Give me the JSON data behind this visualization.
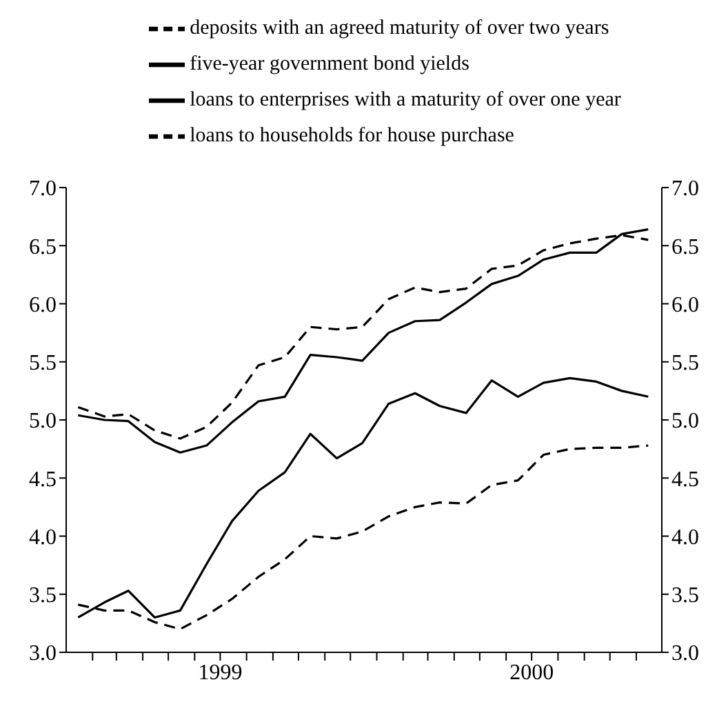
{
  "chart_data": {
    "type": "line",
    "x": [
      "1999-01-15",
      "1999-02-15",
      "1999-03-15",
      "1999-04-15",
      "1999-05-15",
      "1999-06-15",
      "1999-07-15",
      "1999-08-15",
      "1999-09-15",
      "1999-10-15",
      "1999-11-15",
      "1999-12-15",
      "2000-01-15",
      "2000-02-15",
      "2000-03-15",
      "2000-04-15",
      "2000-05-15",
      "2000-06-15",
      "2000-07-15",
      "2000-08-15",
      "2000-09-15",
      "2000-10-15",
      "2000-11-15"
    ],
    "series": [
      {
        "name": "five-year government bond yields",
        "color": "#000000",
        "line_style": "solid",
        "values": [
          3.3,
          3.43,
          3.53,
          3.3,
          3.36,
          3.76,
          4.13,
          4.39,
          4.55,
          4.88,
          4.67,
          4.8,
          5.14,
          5.23,
          5.12,
          5.06,
          5.34,
          5.2,
          5.32,
          5.36,
          5.33,
          5.25,
          5.2
        ]
      },
      {
        "name": "loans to households for house purchase",
        "color": "#000000",
        "line_style": "dashed",
        "values": [
          5.11,
          5.03,
          5.05,
          4.91,
          4.84,
          4.94,
          5.15,
          5.47,
          5.54,
          5.8,
          5.78,
          5.8,
          6.04,
          6.14,
          6.1,
          6.13,
          6.3,
          6.33,
          6.46,
          6.52,
          6.56,
          6.59,
          6.55
        ]
      },
      {
        "name": "deposits with an agreed maturity of over two years",
        "color": "#000000",
        "line_style": "dashed",
        "values": [
          3.41,
          3.36,
          3.36,
          3.26,
          3.2,
          3.32,
          3.46,
          3.65,
          3.8,
          4.0,
          3.98,
          4.04,
          4.17,
          4.25,
          4.29,
          4.28,
          4.44,
          4.48,
          4.7,
          4.75,
          4.76,
          4.76,
          4.78
        ]
      },
      {
        "name": "loans to enterprises with a maturity of over one year",
        "color": "#000000",
        "line_style": "solid",
        "values": [
          5.04,
          5.0,
          4.99,
          4.81,
          4.72,
          4.78,
          4.98,
          5.16,
          5.2,
          5.56,
          5.54,
          5.51,
          5.75,
          5.85,
          5.86,
          6.01,
          6.17,
          6.24,
          6.38,
          6.44,
          6.44,
          6.6,
          6.64
        ]
      }
    ],
    "xlim": [
      "1999-01-01",
      "2000-12-01"
    ],
    "xticks": [
      {
        "value": "1999-02-01",
        "label": null
      },
      {
        "value": "1999-03-01",
        "label": null
      },
      {
        "value": "1999-04-01",
        "label": null
      },
      {
        "value": "1999-05-01",
        "label": null
      },
      {
        "value": "1999-06-01",
        "label": null
      },
      {
        "value": "1999-07-01",
        "label": "1999"
      },
      {
        "value": "1999-08-01",
        "label": null
      },
      {
        "value": "1999-09-01",
        "label": null
      },
      {
        "value": "1999-10-01",
        "label": null
      },
      {
        "value": "1999-11-01",
        "label": null
      },
      {
        "value": "1999-12-01",
        "label": null
      },
      {
        "value": "2000-01-01",
        "label": null
      },
      {
        "value": "2000-02-01",
        "label": null
      },
      {
        "value": "2000-03-01",
        "label": null
      },
      {
        "value": "2000-04-01",
        "label": null
      },
      {
        "value": "2000-05-01",
        "label": null
      },
      {
        "value": "2000-06-01",
        "label": null
      },
      {
        "value": "2000-07-01",
        "label": "2000"
      },
      {
        "value": "2000-08-01",
        "label": null
      },
      {
        "value": "2000-09-01",
        "label": null
      },
      {
        "value": "2000-10-01",
        "label": null
      },
      {
        "value": "2000-11-01",
        "label": null
      }
    ],
    "ylim": [
      3.0,
      7.0
    ],
    "yticks": [
      {
        "value": 3.0,
        "label": "3.0"
      },
      {
        "value": 3.5,
        "label": "3.5"
      },
      {
        "value": 4.0,
        "label": "4.0"
      },
      {
        "value": 4.5,
        "label": "4.5"
      },
      {
        "value": 5.0,
        "label": "5.0"
      },
      {
        "value": 5.5,
        "label": "5.5"
      },
      {
        "value": 6.0,
        "label": "6.0"
      },
      {
        "value": 6.5,
        "label": "6.5"
      },
      {
        "value": 7.0,
        "label": "7.0"
      }
    ],
    "y2lim": [
      3.0,
      7.0
    ],
    "y2ticks": [
      {
        "value": 3.0,
        "label": "3.0"
      },
      {
        "value": 3.5,
        "label": "3.5"
      },
      {
        "value": 4.0,
        "label": "4.0"
      },
      {
        "value": 4.5,
        "label": "4.5"
      },
      {
        "value": 5.0,
        "label": "5.0"
      },
      {
        "value": 5.5,
        "label": "5.5"
      },
      {
        "value": 6.0,
        "label": "6.0"
      },
      {
        "value": 6.5,
        "label": "6.5"
      },
      {
        "value": 7.0,
        "label": "7.0"
      }
    ],
    "legend": "top",
    "grid": false,
    "marker": "none"
  }
}
